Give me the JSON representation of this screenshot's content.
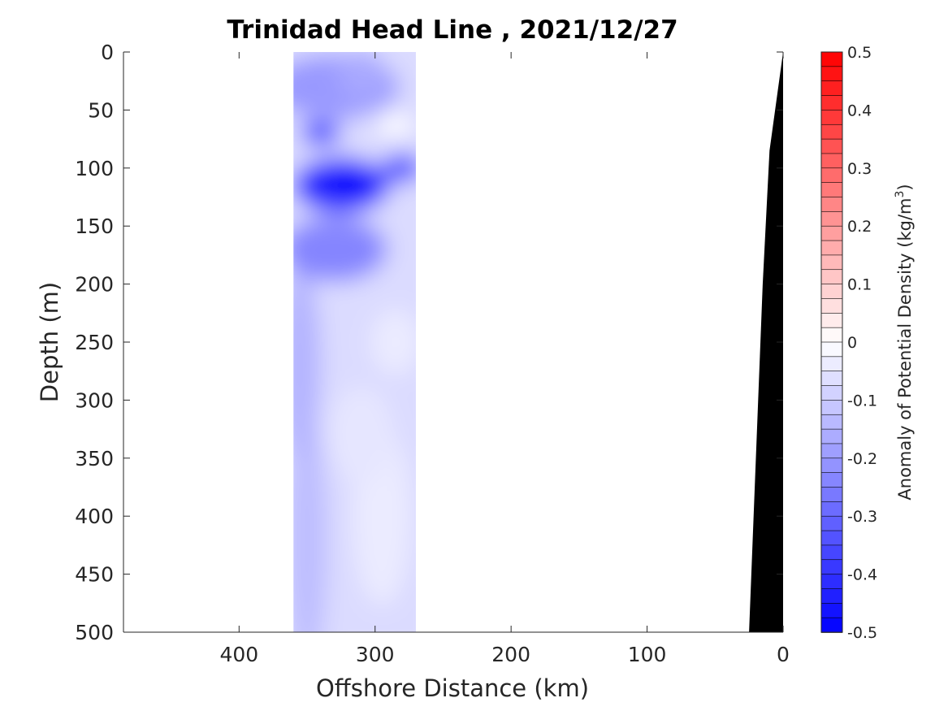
{
  "chart_data": {
    "type": "heatmap",
    "title": "Trinidad Head Line , 2021/12/27",
    "xlabel": "Offshore Distance (km)",
    "ylabel": "Depth (m)",
    "xlim": [
      485,
      0
    ],
    "ylim": [
      0,
      500
    ],
    "x_reversed": true,
    "y_reversed": true,
    "x_ticks": [
      400,
      300,
      200,
      100,
      0
    ],
    "y_ticks": [
      0,
      50,
      100,
      150,
      200,
      250,
      300,
      350,
      400,
      450,
      500
    ],
    "colorbar": {
      "label_main": "Anomaly of Potential Density (kg/m",
      "label_exp": "3",
      "label_close": ")",
      "range": [
        -0.5,
        0.5
      ],
      "step": 0.025,
      "ticks": [
        "0.5",
        "0.4",
        "0.3",
        "0.2",
        "0.1",
        "0",
        "-0.1",
        "-0.2",
        "-0.3",
        "-0.4",
        "-0.5"
      ],
      "low_color": "#0000ff",
      "mid_color": "#ffffff",
      "high_color": "#ff0000"
    },
    "data_region": {
      "x_range": [
        360,
        270
      ],
      "depth_range": [
        0,
        500
      ]
    },
    "features": [
      {
        "kind": "strong negative anomaly",
        "x": 320,
        "depth": 115,
        "value": -0.45
      },
      {
        "kind": "negative anomaly",
        "x": 340,
        "depth": 70,
        "value": -0.4
      },
      {
        "kind": "near-zero anomaly",
        "x": 285,
        "depth": 63,
        "value": 0.0
      },
      {
        "kind": "near-zero anomaly",
        "x": 280,
        "depth": 225,
        "value": -0.05
      }
    ],
    "bathymetry": {
      "color": "#000000",
      "points": [
        [
          0,
          0
        ],
        [
          10,
          85
        ],
        [
          15,
          200
        ],
        [
          25,
          500
        ]
      ]
    }
  }
}
